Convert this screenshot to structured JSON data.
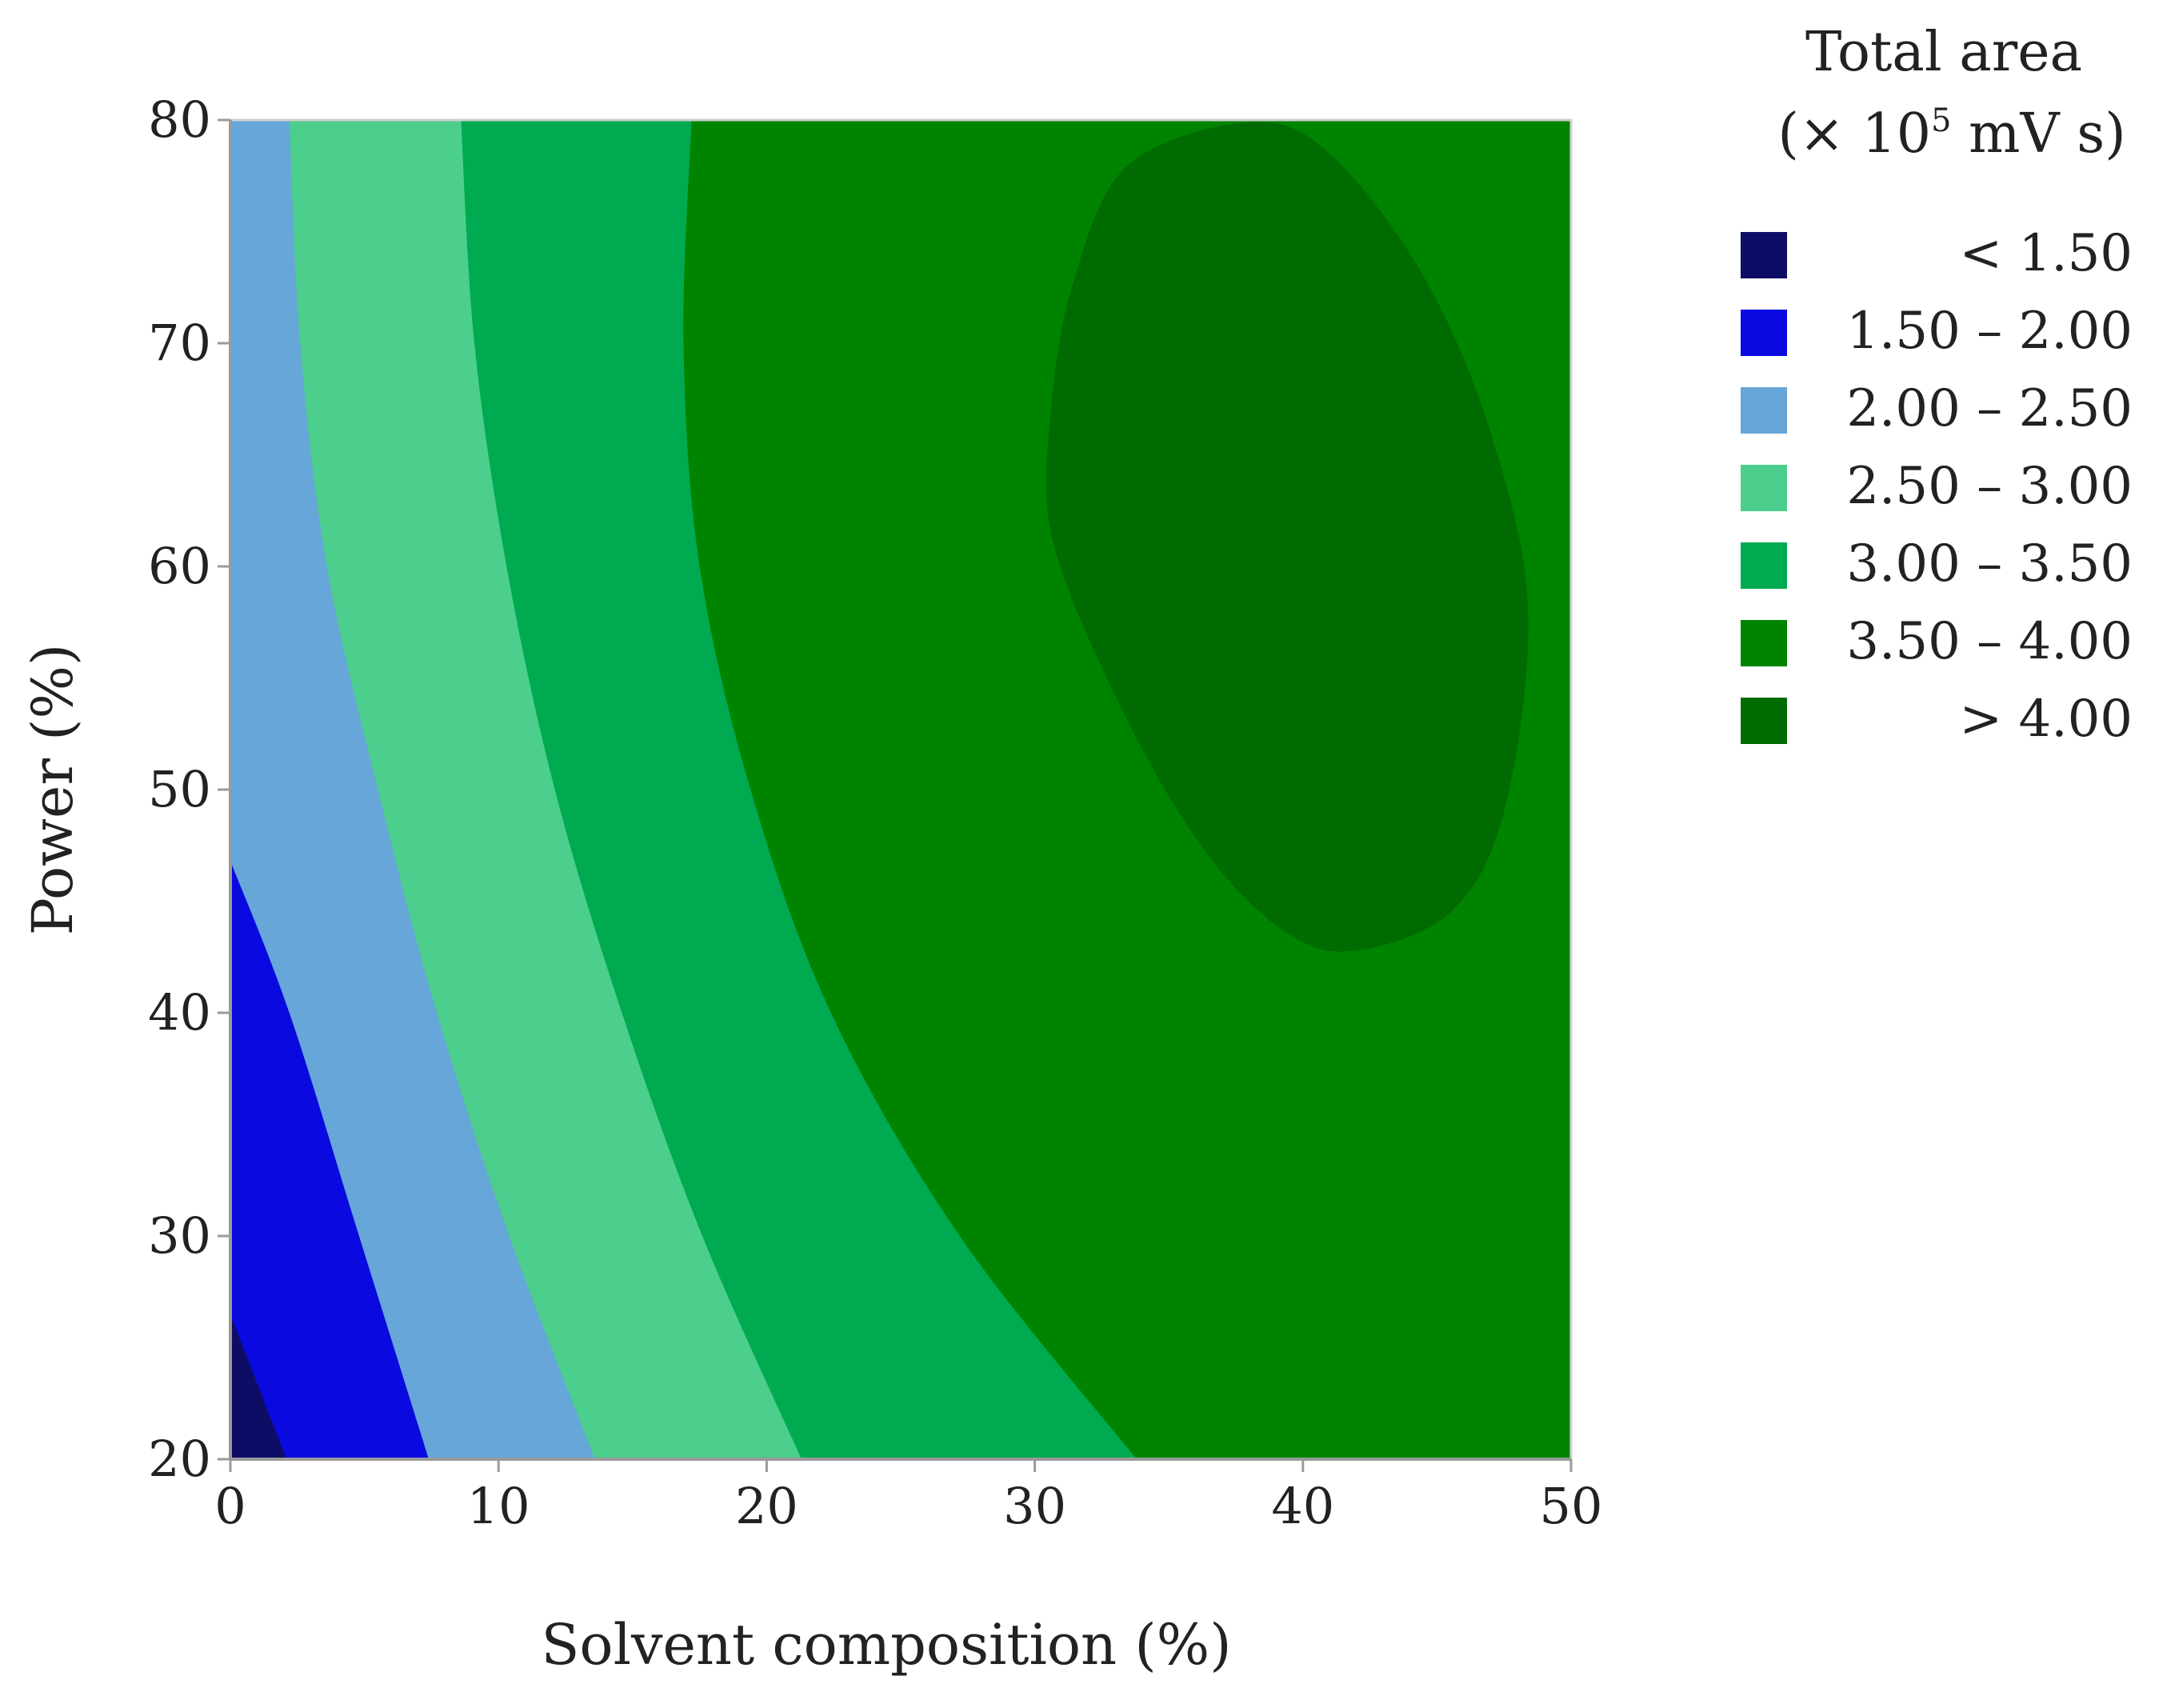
{
  "chart_data": {
    "type": "contour",
    "xlabel": "Solvent composition (%)",
    "ylabel": "Power (%)",
    "xlim": [
      0,
      50
    ],
    "ylim": [
      20,
      80
    ],
    "x_ticks": [
      "0",
      "10",
      "20",
      "30",
      "40",
      "50"
    ],
    "y_ticks": [
      "20",
      "30",
      "40",
      "50",
      "60",
      "70",
      "80"
    ],
    "legend": {
      "title_line1": "Total area",
      "title_line2_prefix": "(× 10",
      "title_line2_exp": "5",
      "title_line2_suffix": " mV s)",
      "placement": "right",
      "levels": [
        {
          "label": "< 1.50",
          "color": "#0d0d66"
        },
        {
          "label": "1.50 – 2.00",
          "color": "#0a0ae0"
        },
        {
          "label": "2.00 – 2.50",
          "color": "#66a6d8"
        },
        {
          "label": "2.50 – 3.00",
          "color": "#4cce8c"
        },
        {
          "label": "3.00 – 3.50",
          "color": "#00aa50"
        },
        {
          "label": "3.50 – 4.00",
          "color": "#008400"
        },
        {
          "label": "> 4.00",
          "color": "#006b00"
        }
      ]
    },
    "contour_boundaries": [
      {
        "level": "1.50",
        "points": [
          [
            0,
            26.5
          ],
          [
            2.1,
            20
          ]
        ]
      },
      {
        "level": "2.00",
        "points": [
          [
            0,
            46.8
          ],
          [
            2.2,
            40
          ],
          [
            4.8,
            30
          ],
          [
            7.4,
            20
          ]
        ]
      },
      {
        "level": "2.50",
        "points": [
          [
            2.2,
            80
          ],
          [
            2.6,
            70
          ],
          [
            3.6,
            60
          ],
          [
            5.5,
            50
          ],
          [
            7.7,
            40
          ],
          [
            10.4,
            30
          ],
          [
            13.6,
            20
          ]
        ]
      },
      {
        "level": "3.00",
        "points": [
          [
            8.6,
            80
          ],
          [
            9.1,
            70
          ],
          [
            10.3,
            60
          ],
          [
            12.1,
            50
          ],
          [
            14.6,
            40
          ],
          [
            17.6,
            30
          ],
          [
            21.3,
            20
          ]
        ]
      },
      {
        "level": "3.50",
        "points": [
          [
            17.2,
            80
          ],
          [
            16.9,
            70
          ],
          [
            17.5,
            60
          ],
          [
            19.4,
            50
          ],
          [
            22.4,
            40
          ],
          [
            27.2,
            30
          ],
          [
            33.8,
            20
          ]
        ]
      }
    ],
    "max_region": {
      "level": "4.00",
      "points": [
        [
          38,
          79.9
        ],
        [
          41,
          78.5
        ],
        [
          44.5,
          73
        ],
        [
          47,
          66
        ],
        [
          48.4,
          58
        ],
        [
          47.5,
          49
        ],
        [
          45.5,
          44.5
        ],
        [
          42,
          42.8
        ],
        [
          39.5,
          43.5
        ],
        [
          36.5,
          47
        ],
        [
          33.5,
          53
        ],
        [
          30.7,
          61
        ],
        [
          30.6,
          67
        ],
        [
          31.5,
          73
        ],
        [
          33.5,
          78
        ]
      ]
    }
  }
}
